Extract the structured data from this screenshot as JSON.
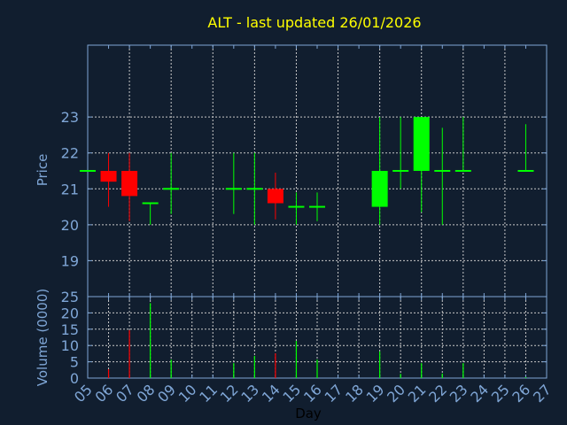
{
  "chart_data": [
    {
      "type": "candlestick",
      "title": "ALT - last updated 26/01/2026",
      "ylabel": "Price",
      "xlabel": "Day",
      "ylim": [
        18,
        25
      ],
      "yticks": [
        "19",
        "20",
        "21",
        "22",
        "23"
      ],
      "xticks": [
        "05",
        "06",
        "07",
        "08",
        "09",
        "10",
        "11",
        "12",
        "13",
        "14",
        "15",
        "16",
        "17",
        "18",
        "19",
        "20",
        "21",
        "22",
        "23",
        "24",
        "25",
        "26",
        "27"
      ],
      "grid": true,
      "colors": {
        "up": "#00ff00",
        "down": "#ff0000",
        "title": "#ffff00",
        "axis": "#7fa6d6",
        "background": "#111e2f"
      },
      "candles": [
        {
          "day": "05",
          "open": 21.5,
          "high": 21.5,
          "low": 21.5,
          "close": 21.5
        },
        {
          "day": "06",
          "open": 21.5,
          "high": 22.0,
          "low": 20.5,
          "close": 21.2
        },
        {
          "day": "07",
          "open": 21.5,
          "high": 22.0,
          "low": 20.1,
          "close": 20.8
        },
        {
          "day": "08",
          "open": 20.6,
          "high": 20.6,
          "low": 20.0,
          "close": 20.6
        },
        {
          "day": "09",
          "open": 21.0,
          "high": 22.0,
          "low": 20.3,
          "close": 21.0
        },
        {
          "day": "12",
          "open": 21.0,
          "high": 22.0,
          "low": 20.3,
          "close": 21.0
        },
        {
          "day": "13",
          "open": 21.0,
          "high": 22.0,
          "low": 20.0,
          "close": 21.0
        },
        {
          "day": "14",
          "open": 21.0,
          "high": 21.45,
          "low": 20.15,
          "close": 20.6
        },
        {
          "day": "15",
          "open": 20.5,
          "high": 20.9,
          "low": 20.0,
          "close": 20.5
        },
        {
          "day": "16",
          "open": 20.5,
          "high": 20.9,
          "low": 20.1,
          "close": 20.5
        },
        {
          "day": "19",
          "open": 20.5,
          "high": 23.0,
          "low": 20.0,
          "close": 21.5
        },
        {
          "day": "20",
          "open": 21.5,
          "high": 23.0,
          "low": 21.0,
          "close": 21.5
        },
        {
          "day": "21",
          "open": 21.5,
          "high": 23.0,
          "low": 20.35,
          "close": 23.0
        },
        {
          "day": "22",
          "open": 21.5,
          "high": 22.7,
          "low": 20.0,
          "close": 21.5
        },
        {
          "day": "23",
          "open": 21.5,
          "high": 23.0,
          "low": 21.5,
          "close": 21.5
        },
        {
          "day": "26",
          "open": 21.5,
          "high": 22.8,
          "low": 21.5,
          "close": 21.5
        }
      ]
    },
    {
      "type": "bar",
      "ylabel": "Volume (0000)",
      "xlabel": "Day",
      "ylim": [
        0,
        25
      ],
      "yticks": [
        "0",
        "5",
        "10",
        "15",
        "20",
        "25"
      ],
      "grid": true,
      "bars": [
        {
          "day": "06",
          "value": 2.7,
          "dir": "down"
        },
        {
          "day": "07",
          "value": 14.7,
          "dir": "down"
        },
        {
          "day": "08",
          "value": 23.0,
          "dir": "up"
        },
        {
          "day": "09",
          "value": 5.7,
          "dir": "up"
        },
        {
          "day": "12",
          "value": 4.6,
          "dir": "up"
        },
        {
          "day": "13",
          "value": 6.8,
          "dir": "up"
        },
        {
          "day": "14",
          "value": 7.6,
          "dir": "down"
        },
        {
          "day": "15",
          "value": 11.4,
          "dir": "up"
        },
        {
          "day": "16",
          "value": 5.7,
          "dir": "up"
        },
        {
          "day": "19",
          "value": 8.2,
          "dir": "up"
        },
        {
          "day": "20",
          "value": 1.3,
          "dir": "up"
        },
        {
          "day": "21",
          "value": 4.6,
          "dir": "up"
        },
        {
          "day": "22",
          "value": 1.4,
          "dir": "up"
        },
        {
          "day": "23",
          "value": 4.6,
          "dir": "up"
        },
        {
          "day": "26",
          "value": 0.3,
          "dir": "up"
        }
      ]
    }
  ]
}
